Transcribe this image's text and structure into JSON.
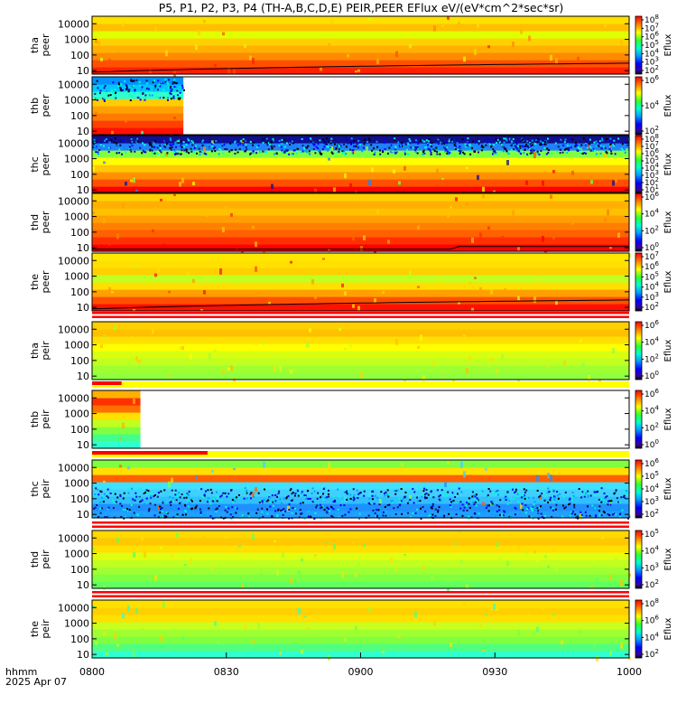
{
  "chart_data": {
    "type": "heatmap",
    "title": "P5, P1, P2, P3, P4 (TH-A,B,C,D,E) PEIR,PEER EFlux eV/(eV*cm^2*sec*sr)",
    "x_axis": {
      "label": "hhmm",
      "date": "2025 Apr 07",
      "range": [
        "0800",
        "1000"
      ],
      "ticks": [
        "0800",
        "0830",
        "0900",
        "0930",
        "1000"
      ]
    },
    "colorbar_label": "Eflux",
    "yscale": "log",
    "panels": [
      {
        "probe": "tha",
        "species": "peer",
        "ylabel": [
          "tha",
          "peer"
        ],
        "yticks": [
          "10",
          "100",
          "1000",
          "10000"
        ],
        "ylim": [
          6,
          30000
        ],
        "colorbar_ticks": [
          "10^2",
          "10^3",
          "10^4",
          "10^5",
          "10^6",
          "10^7",
          "10^8"
        ],
        "coverage": [
          0,
          1
        ],
        "overlay_line": true
      },
      {
        "probe": "thb",
        "species": "peer",
        "ylabel": [
          "thb",
          "peer"
        ],
        "yticks": [
          "10",
          "100",
          "1000",
          "10000"
        ],
        "ylim": [
          6,
          30000
        ],
        "colorbar_ticks": [
          "10^2",
          "10^4",
          "10^6"
        ],
        "coverage": [
          0,
          0.17
        ],
        "overlay_line": false
      },
      {
        "probe": "thc",
        "species": "peer",
        "ylabel": [
          "thc",
          "peer"
        ],
        "yticks": [
          "10",
          "100",
          "1000",
          "10000"
        ],
        "ylim": [
          6,
          30000
        ],
        "colorbar_ticks": [
          "10^1",
          "10^2",
          "10^3",
          "10^4",
          "10^5",
          "10^6",
          "10^7",
          "10^8"
        ],
        "coverage": [
          0,
          1
        ],
        "overlay_line": true
      },
      {
        "probe": "thd",
        "species": "peer",
        "ylabel": [
          "thd",
          "peer"
        ],
        "yticks": [
          "10",
          "100",
          "1000",
          "10000"
        ],
        "ylim": [
          6,
          30000
        ],
        "colorbar_ticks": [
          "10^0",
          "10^2",
          "10^4",
          "10^6"
        ],
        "coverage": [
          0,
          1
        ],
        "overlay_line": true
      },
      {
        "probe": "the",
        "species": "peer",
        "ylabel": [
          "the",
          "peer"
        ],
        "yticks": [
          "10",
          "100",
          "1000",
          "10000"
        ],
        "ylim": [
          6,
          30000
        ],
        "colorbar_ticks": [
          "10^2",
          "10^3",
          "10^4",
          "10^5",
          "10^6",
          "10^7"
        ],
        "coverage": [
          0,
          1
        ],
        "overlay_line": true
      },
      {
        "probe": "tha",
        "species": "peir",
        "ylabel": [
          "tha",
          "peir"
        ],
        "yticks": [
          "10",
          "100",
          "1000",
          "10000"
        ],
        "ylim": [
          6,
          30000
        ],
        "colorbar_ticks": [
          "10^0",
          "10^2",
          "10^4",
          "10^6"
        ],
        "coverage": [
          0,
          1
        ],
        "overlay_line": false
      },
      {
        "probe": "thb",
        "species": "peir",
        "ylabel": [
          "thb",
          "peir"
        ],
        "yticks": [
          "10",
          "100",
          "1000",
          "10000"
        ],
        "ylim": [
          6,
          30000
        ],
        "colorbar_ticks": [
          "10^0",
          "10^2",
          "10^4",
          "10^6"
        ],
        "coverage": [
          0,
          0.09
        ],
        "overlay_line": false
      },
      {
        "probe": "thc",
        "species": "peir",
        "ylabel": [
          "thc",
          "peir"
        ],
        "yticks": [
          "10",
          "100",
          "1000",
          "10000"
        ],
        "ylim": [
          6,
          30000
        ],
        "colorbar_ticks": [
          "10^2",
          "10^3",
          "10^4",
          "10^5",
          "10^6"
        ],
        "coverage": [
          0,
          1
        ],
        "overlay_line": false
      },
      {
        "probe": "thd",
        "species": "peir",
        "ylabel": [
          "thd",
          "peir"
        ],
        "yticks": [
          "10",
          "100",
          "1000",
          "10000"
        ],
        "ylim": [
          6,
          30000
        ],
        "colorbar_ticks": [
          "10^2",
          "10^3",
          "10^4",
          "10^5"
        ],
        "coverage": [
          0,
          1
        ],
        "overlay_line": false
      },
      {
        "probe": "the",
        "species": "peir",
        "ylabel": [
          "the",
          "peir"
        ],
        "yticks": [
          "10",
          "100",
          "1000",
          "10000"
        ],
        "ylim": [
          6,
          30000
        ],
        "colorbar_ticks": [
          "10^2",
          "10^4",
          "10^6",
          "10^8"
        ],
        "coverage": [
          0,
          1
        ],
        "overlay_line": false
      }
    ]
  }
}
